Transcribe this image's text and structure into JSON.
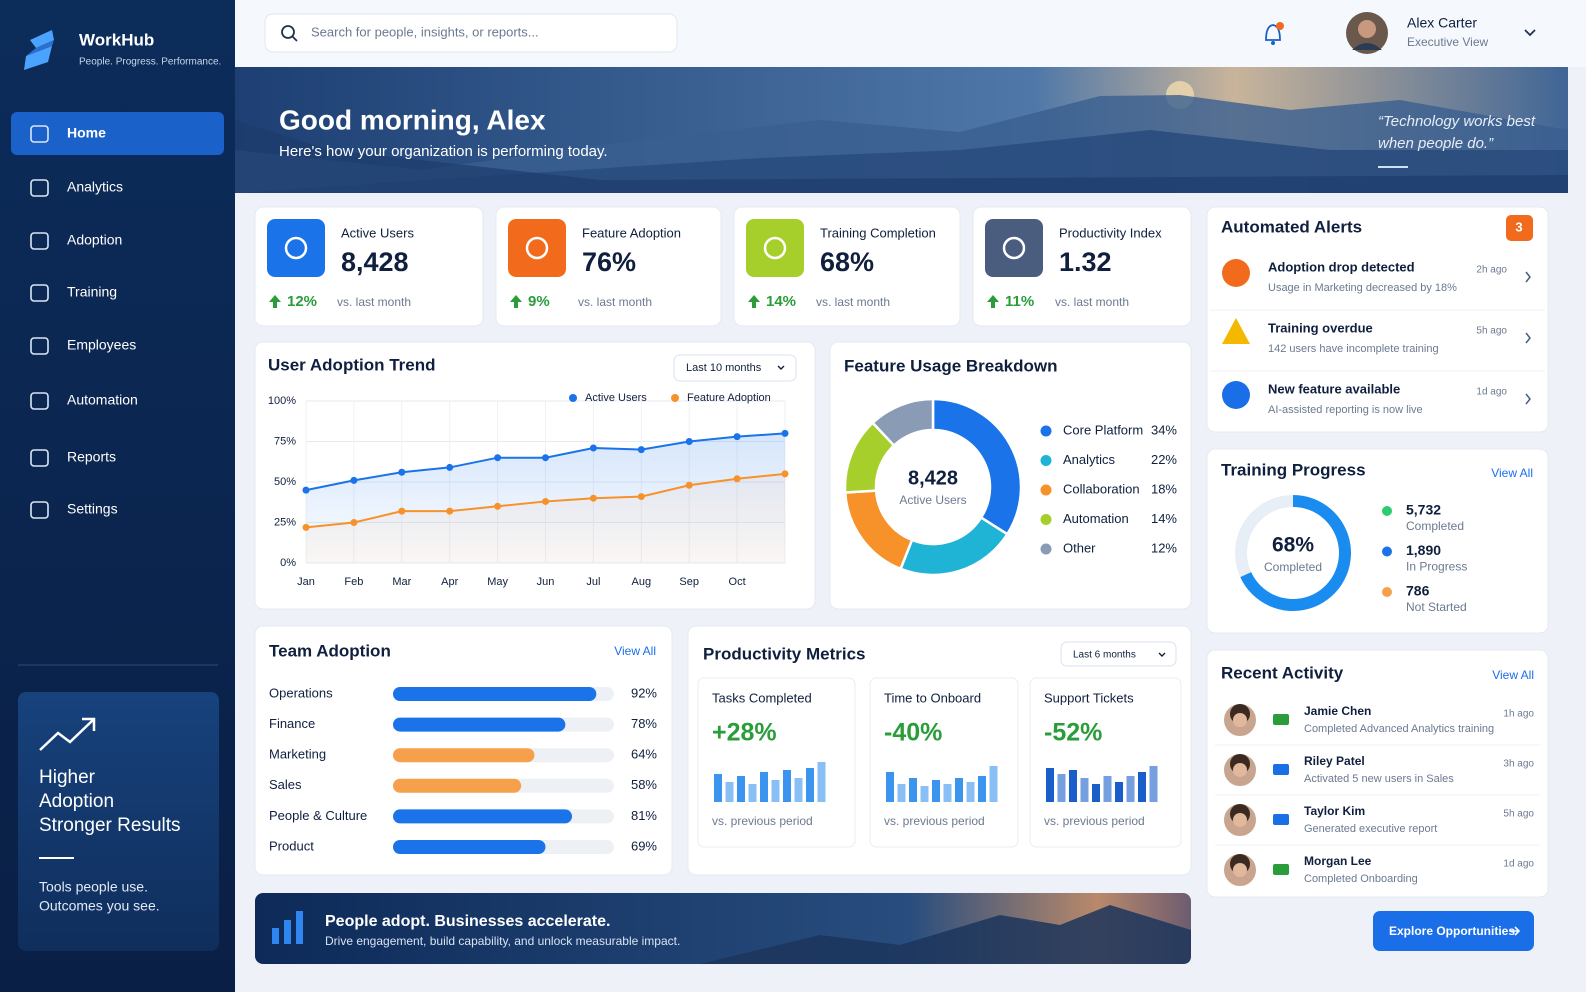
{
  "sidebar": {
    "brand": "WorkHub",
    "tagline": "People. Progress. Performance.",
    "nav": [
      "Home",
      "Analytics",
      "Adoption",
      "Training",
      "Employees",
      "Automation",
      "Reports",
      "Settings"
    ],
    "promo": {
      "title": [
        "Higher",
        "Adoption",
        "Stronger Results"
      ],
      "text": [
        "Tools people use.",
        "Outcomes you see."
      ]
    }
  },
  "header": {
    "search_placeholder": "Search for people, insights, or reports...",
    "user_name": "Alex Carter",
    "user_role": "Executive View"
  },
  "hero": {
    "title": "Good morning, Alex",
    "subtitle": "Here's how your organization is performing today.",
    "quote": [
      "“Technology works best",
      "when people do.”"
    ]
  },
  "kpis": [
    {
      "label": "Active Users",
      "value": "8,428",
      "change": "12%",
      "note": "vs. last month",
      "color": "#1a73e8"
    },
    {
      "label": "Feature Adoption",
      "value": "76%",
      "change": "9%",
      "note": "vs. last month",
      "color": "#f26b1d"
    },
    {
      "label": "Training Completion",
      "value": "68%",
      "change": "14%",
      "note": "vs. last month",
      "color": "#a6cf2c"
    },
    {
      "label": "Productivity Index",
      "value": "1.32",
      "change": "11%",
      "note": "vs. last month",
      "color": "#4a5d7e"
    }
  ],
  "adoption_trend": {
    "type": "line",
    "title": "User Adoption Trend",
    "filter": "Last 10 months",
    "categories": [
      "Jan",
      "Feb",
      "Mar",
      "Apr",
      "May",
      "Jun",
      "Jul",
      "Aug",
      "Sep",
      "Oct",
      null
    ],
    "series": [
      {
        "name": "Active Users",
        "color": "#1a73e8",
        "values": [
          45,
          51,
          56,
          59,
          65,
          65,
          71,
          70,
          75,
          78,
          80
        ]
      },
      {
        "name": "Feature Adoption",
        "color": "#f7922b",
        "values": [
          22,
          25,
          32,
          32,
          35,
          38,
          40,
          41,
          48,
          52,
          55
        ]
      }
    ],
    "ylim": [
      0,
      100
    ],
    "yticks": [
      {
        "value": 0,
        "label": "0%"
      },
      {
        "value": 25,
        "label": "25%"
      },
      {
        "value": 50,
        "label": "50%"
      },
      {
        "value": 75,
        "label": "75%"
      },
      {
        "value": 100,
        "label": "100%"
      }
    ],
    "grid": true
  },
  "feature_usage": {
    "type": "pie",
    "title": "Feature Usage Breakdown",
    "center_value": "8,428",
    "center_label": "Active Users",
    "categories": [
      "Core Platform",
      "Analytics",
      "Collaboration",
      "Automation",
      "Other"
    ],
    "values": [
      34,
      22,
      18,
      14,
      12
    ],
    "value_labels": [
      "34%",
      "22%",
      "18%",
      "14%",
      "12%"
    ],
    "colors": [
      "#1a73e8",
      "#1fb3d6",
      "#f7922b",
      "#a6cf2c",
      "#8a9bb5"
    ]
  },
  "team_adoption": {
    "type": "bar",
    "title": "Team Adoption",
    "link": "View All",
    "categories": [
      "Operations",
      "Finance",
      "Marketing",
      "Sales",
      "People & Culture",
      "Product"
    ],
    "values": [
      92,
      78,
      64,
      58,
      81,
      69
    ],
    "value_labels": [
      "92%",
      "78%",
      "64%",
      "58%",
      "81%",
      "69%"
    ],
    "colors": [
      "#1a73e8",
      "#1a73e8",
      "#f7a04b",
      "#f7a04b",
      "#1a73e8",
      "#1a73e8"
    ],
    "xlim": [
      0,
      100
    ]
  },
  "productivity": {
    "title": "Productivity Metrics",
    "filter": "Last 6 months",
    "cards": [
      {
        "type": "bar",
        "title": "Tasks Completed",
        "change": "+28%",
        "note": "vs. previous period",
        "color": "#3b94ee",
        "values": [
          28,
          20,
          26,
          18,
          30,
          22,
          32,
          24,
          34,
          40
        ]
      },
      {
        "type": "bar",
        "title": "Time to Onboard",
        "change": "-40%",
        "note": "vs. previous period",
        "color": "#3b94ee",
        "values": [
          30,
          18,
          24,
          16,
          22,
          18,
          24,
          20,
          26,
          36
        ]
      },
      {
        "type": "bar",
        "title": "Support Tickets",
        "change": "-52%",
        "note": "vs. previous period",
        "color": "#1a5fc9",
        "values": [
          34,
          28,
          32,
          24,
          18,
          26,
          20,
          26,
          30,
          36
        ]
      }
    ]
  },
  "alerts": {
    "title": "Automated Alerts",
    "count": "3",
    "items": [
      {
        "title": "Adoption drop detected",
        "text": "Usage in Marketing decreased by 18%",
        "time": "2h ago"
      },
      {
        "title": "Training overdue",
        "text": "142 users have incomplete training",
        "time": "5h ago"
      },
      {
        "title": "New feature available",
        "text": "AI-assisted reporting is now live",
        "time": "1d ago"
      }
    ]
  },
  "training_progress": {
    "type": "pie",
    "title": "Training Progress",
    "link": "View All",
    "center_value": "68%",
    "center_label": "Completed",
    "categories": [
      "Completed",
      "In Progress",
      "Not Started"
    ],
    "values": [
      5732,
      1890,
      786
    ],
    "value_labels": [
      "5,732",
      "1,890",
      "786"
    ],
    "colors": [
      "#2ecc71",
      "#1a73e8",
      "#f7a04b"
    ]
  },
  "recent_activity": {
    "title": "Recent Activity",
    "link": "View All",
    "items": [
      {
        "name": "Jamie Chen",
        "text": "Completed Advanced Analytics training",
        "time": "1h ago"
      },
      {
        "name": "Riley Patel",
        "text": "Activated 5 new users in Sales",
        "time": "3h ago"
      },
      {
        "name": "Taylor Kim",
        "text": "Generated executive report",
        "time": "5h ago"
      },
      {
        "name": "Morgan Lee",
        "text": "Completed Onboarding",
        "time": "1d ago"
      }
    ]
  },
  "banner": {
    "title": "People adopt. Businesses accelerate.",
    "text": "Drive engagement, build capability, and unlock measurable impact."
  },
  "cta": "Explore Opportunities"
}
